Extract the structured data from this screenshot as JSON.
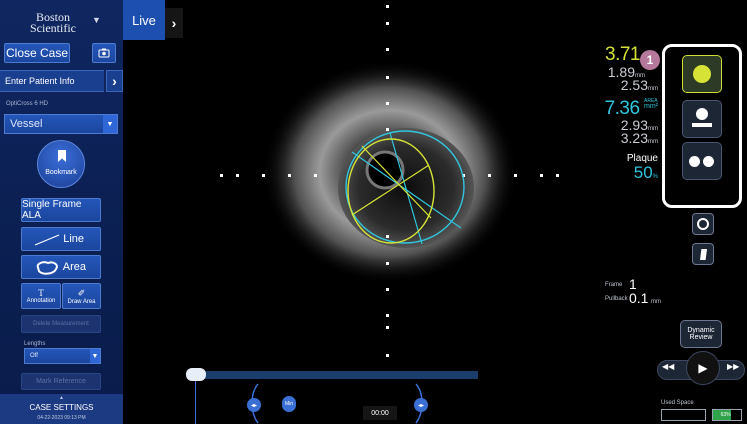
{
  "brand": {
    "line1": "Boston",
    "line2": "Scientific"
  },
  "left_panel": {
    "close_case": "Close Case",
    "enter_patient": "Enter Patient Info",
    "catheter": "OptiCross 6 HD",
    "vessel_select": "Vessel",
    "bookmark": "Bookmark",
    "single_frame": "Single Frame ALA",
    "line": "Line",
    "area": "Area",
    "annotation": "Annotation",
    "annotation_glyph": "T",
    "draw_area": "Draw Area",
    "draw_glyph": "✐",
    "delete_measurement": "Delete Measurement",
    "lengths_label": "Lengths",
    "lengths_value": "Off",
    "mark_reference": "Mark Reference",
    "case_settings": "CASE SETTINGS",
    "datetime": "04-22-2023 09:13 PM"
  },
  "live_tab": {
    "label": "Live"
  },
  "measurements": {
    "lumen_value": "3.71",
    "lumen_d1": "1.89",
    "lumen_d2": "2.53",
    "unit_mm": "mm",
    "area_value": "7.36",
    "area_unit_top": "AREA",
    "area_unit": "mm²",
    "vessel_d1": "2.93",
    "vessel_d2": "3.23",
    "plaque_label": "Plaque",
    "plaque_value": "50",
    "plaque_unit": "%"
  },
  "badge": "1",
  "frame": {
    "label": "Frame",
    "value": "1",
    "pullback_label": "Pullback",
    "pullback_value": "0.1",
    "pullback_unit": "mm"
  },
  "dynamic_review": {
    "line1": "Dynamic",
    "line2": "Review"
  },
  "timeline": {
    "min_label": "Min",
    "time": "00:00"
  },
  "used_space": {
    "label": "Used Space",
    "percent": "63%"
  },
  "colors": {
    "lumen": "#d6e336",
    "vessel": "#30c6dd",
    "panel": "#0b1f52",
    "accent": "#2456b9"
  }
}
